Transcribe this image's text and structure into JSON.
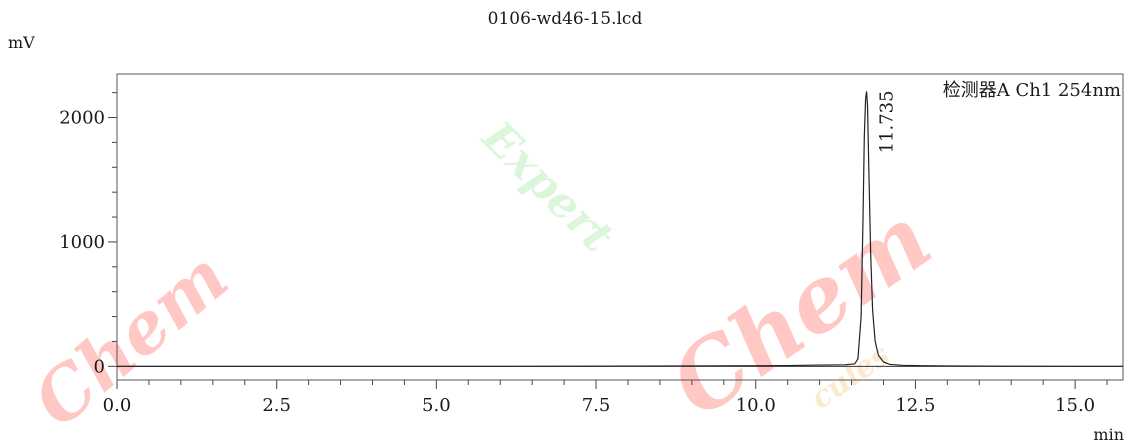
{
  "chart_data": {
    "type": "line",
    "title": "0106-wd46-15.lcd",
    "ylabel": "mV",
    "xlabel": "min",
    "legend": "检测器A Ch1 254nm",
    "xlim": [
      0.0,
      15.75
    ],
    "ylim": [
      -110,
      2350
    ],
    "x_ticks": [
      0.0,
      2.5,
      5.0,
      7.5,
      10.0,
      12.5,
      15.0
    ],
    "x_tick_labels": [
      "0.0",
      "2.5",
      "5.0",
      "7.5",
      "10.0",
      "12.5",
      "15.0"
    ],
    "y_ticks": [
      0,
      1000,
      2000
    ],
    "y_tick_labels": [
      "0",
      "1000",
      "2000"
    ],
    "series": [
      {
        "x": [
          0.0,
          2.0,
          4.0,
          6.0,
          8.0,
          9.5,
          10.5,
          11.0,
          11.4,
          11.55,
          11.6,
          11.65,
          11.68,
          11.7,
          11.72,
          11.735,
          11.75,
          11.77,
          11.8,
          11.83,
          11.87,
          11.92,
          12.0,
          12.1,
          12.3,
          12.6,
          13.0,
          14.0,
          15.0,
          15.75
        ],
        "y": [
          0,
          0,
          0,
          0,
          2,
          4,
          6,
          10,
          12,
          20,
          60,
          400,
          1200,
          1850,
          2150,
          2210,
          2100,
          1600,
          900,
          450,
          200,
          90,
          35,
          15,
          8,
          5,
          3,
          1,
          0,
          0
        ]
      }
    ],
    "peak_labels": [
      {
        "x": 11.735,
        "y": 2210,
        "text": "11.735"
      }
    ]
  },
  "watermarks": [
    {
      "text": "Chem",
      "color": "#ff3b30"
    },
    {
      "text": "Chem",
      "color": "#ff3b30"
    },
    {
      "text": "Expert",
      "color": "#7ee07e"
    },
    {
      "text": "cules",
      "color": "#f2b24a"
    }
  ]
}
